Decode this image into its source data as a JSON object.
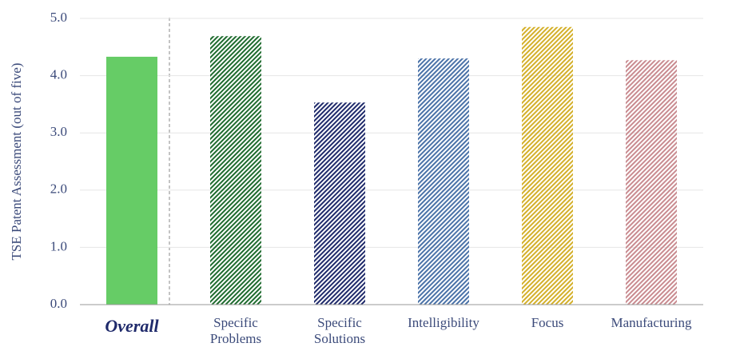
{
  "chart_data": {
    "type": "bar",
    "y_label": "TSE Patent Assessment (out of five)",
    "categories": [
      "Overall",
      "Specific Problems",
      "Specific Solutions",
      "Intelligibility",
      "Focus",
      "Manufacturing"
    ],
    "values": [
      4.33,
      4.69,
      3.53,
      4.3,
      4.85,
      4.27
    ],
    "colors": [
      "#66cc66",
      "#1e6b2e",
      "#1f2a6b",
      "#4a72a8",
      "#d4b02a",
      "#c98b90"
    ],
    "patterns": [
      "solid",
      "hatch",
      "hatch",
      "hatch",
      "hatch",
      "hatch"
    ],
    "ylim": [
      0,
      5
    ],
    "yticks": [
      {
        "value": 0,
        "label": "0.0"
      },
      {
        "value": 1,
        "label": "1.0"
      },
      {
        "value": 2,
        "label": "2.0"
      },
      {
        "value": 3,
        "label": "3.0"
      },
      {
        "value": 4,
        "label": "4.0"
      },
      {
        "value": 5,
        "label": "5.0"
      }
    ],
    "grid": true
  }
}
